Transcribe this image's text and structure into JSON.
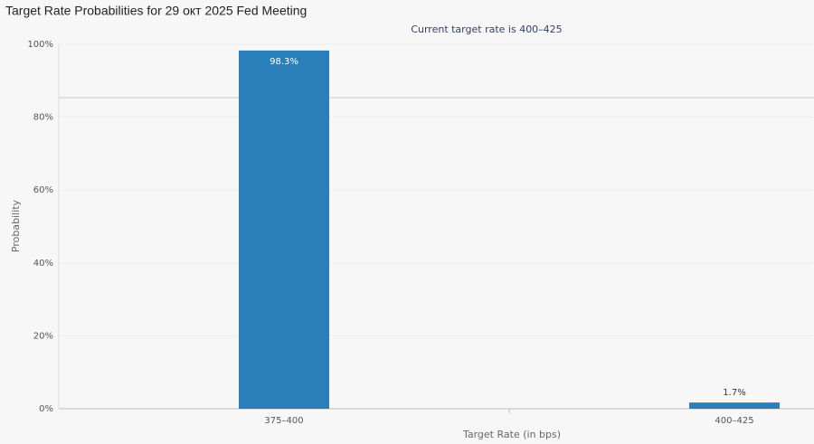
{
  "chart_data": {
    "type": "bar",
    "title": "Target Rate Probabilities for 29 окт 2025 Fed Meeting",
    "subtitle": "Current target rate is 400–425",
    "x_label": "Target Rate (in bps)",
    "y_label": "Probability",
    "categories": [
      "375–400",
      "400–425"
    ],
    "values": [
      98.3,
      1.7
    ],
    "value_labels": [
      "98.3%",
      "1.7%"
    ],
    "color": "#2a7fba",
    "ylim": [
      0,
      100
    ],
    "yticks": [
      {
        "value": 0,
        "label": "0%"
      },
      {
        "value": 20,
        "label": "20%"
      },
      {
        "value": 40,
        "label": "40%"
      },
      {
        "value": 60,
        "label": "60%"
      },
      {
        "value": 80,
        "label": "80%"
      },
      {
        "value": 100,
        "label": "100%"
      }
    ],
    "grid": true
  }
}
